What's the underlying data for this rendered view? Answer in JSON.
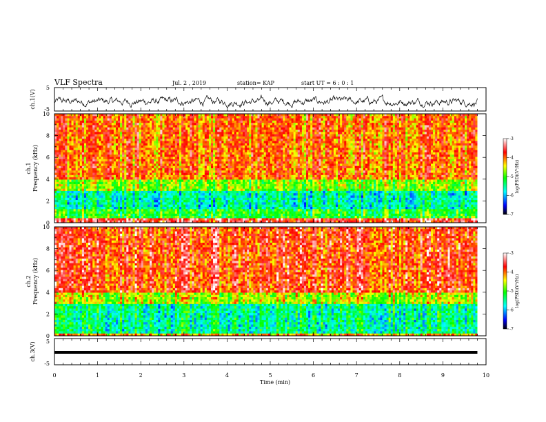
{
  "header": {
    "title": "VLF Spectra",
    "date": "Jul. 2 , 2019",
    "station": "station= KAP",
    "start": "start UT = 6 : 0 : 1"
  },
  "colors": {
    "colormap": [
      "#000000",
      "#0000ff",
      "#00ffff",
      "#00ff00",
      "#ffff00",
      "#ff0000",
      "#ffffff"
    ],
    "trace": "#000000",
    "axis": "#000000"
  },
  "chart_data": [
    {
      "type": "line",
      "ylabel": "ch.1(V)",
      "ylim": [
        -5,
        5
      ],
      "yticks": [
        "5",
        "-5"
      ],
      "description_free": true,
      "xlim": [
        0,
        9.8
      ],
      "series": [
        {
          "values_range": [
            -3.5,
            2.0
          ]
        }
      ]
    },
    {
      "type": "heatmap",
      "ylabel": "ch.1\nFrequency (kHz)",
      "ylabel_lines": [
        "ch.1",
        "Frequency (kHz)"
      ],
      "ylim": [
        0,
        10
      ],
      "yticks": [
        "0",
        "2",
        "4",
        "6",
        "8",
        "10"
      ],
      "xlim": [
        0,
        9.8
      ],
      "bands": [
        {
          "from": 0,
          "to": 0.5,
          "level": -3.6
        },
        {
          "from": 0.5,
          "to": 1.2,
          "level": -5.1
        },
        {
          "from": 1.2,
          "to": 3.0,
          "level": -5.6
        },
        {
          "from": 3.0,
          "to": 4.0,
          "level": -4.8
        },
        {
          "from": 4.0,
          "to": 10,
          "level": -4.0
        }
      ],
      "colorbar": {
        "label": "log(PSD)(V²/Hz)",
        "range": [
          -7,
          -3
        ],
        "ticks": [
          "-3",
          "-4",
          "-5",
          "-6",
          "-7"
        ]
      }
    },
    {
      "type": "heatmap",
      "ylabel": "ch.2\nFrequency (kHz)",
      "ylabel_lines": [
        "ch.2",
        "Frequency (kHz)"
      ],
      "ylim": [
        0,
        10
      ],
      "yticks": [
        "0",
        "2",
        "4",
        "6",
        "8",
        "10"
      ],
      "xlim": [
        0,
        9.8
      ],
      "bands": [
        {
          "from": 0,
          "to": 0.3,
          "level": -4.2
        },
        {
          "from": 0.3,
          "to": 3.0,
          "level": -5.5
        },
        {
          "from": 3.0,
          "to": 4.0,
          "level": -4.6
        },
        {
          "from": 4.0,
          "to": 10,
          "level": -3.8
        }
      ],
      "colorbar": {
        "label": "log(PSD)(V²/Hz)",
        "range": [
          -7,
          -3
        ],
        "ticks": [
          "-3",
          "-4",
          "-5",
          "-6",
          "-7"
        ]
      }
    },
    {
      "type": "line",
      "ylabel": "ch.3(V)",
      "ylim": [
        -5,
        5
      ],
      "yticks": [
        "5",
        "-5"
      ],
      "xlim": [
        0,
        9.8
      ],
      "series": [
        {
          "values_range": [
            -0.2,
            0.2
          ]
        }
      ]
    }
  ],
  "xaxis": {
    "label": "Time (min)",
    "ticks": [
      "0",
      "1",
      "2",
      "3",
      "4",
      "5",
      "6",
      "7",
      "8",
      "9",
      "10"
    ],
    "range": [
      0,
      10
    ]
  }
}
